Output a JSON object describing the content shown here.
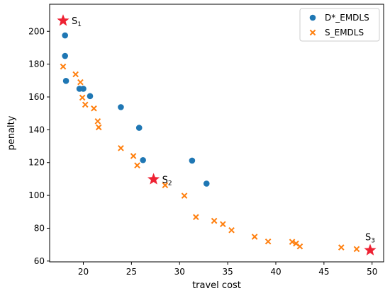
{
  "chart_data": {
    "type": "scatter",
    "xlabel": "travel cost",
    "ylabel": "penalty",
    "xlim": [
      16.5,
      51.2
    ],
    "ylim": [
      59.5,
      216.5
    ],
    "xticks": [
      20,
      25,
      30,
      35,
      40,
      45,
      50
    ],
    "yticks": [
      60,
      80,
      100,
      120,
      140,
      160,
      180,
      200
    ],
    "grid": false,
    "legend_position": "top-right",
    "colors": {
      "d_emdls": "#1f77b4",
      "s_emdls": "#ff7f0e",
      "star": "#ee2233"
    },
    "series": [
      {
        "name": "D*_EMDLS",
        "marker": "circle",
        "points": [
          [
            18.1,
            197.5
          ],
          [
            18.1,
            185.0
          ],
          [
            18.2,
            169.8
          ],
          [
            19.6,
            165.0
          ],
          [
            20.0,
            165.0
          ],
          [
            20.7,
            160.5
          ],
          [
            23.9,
            153.8
          ],
          [
            25.8,
            141.2
          ],
          [
            26.2,
            121.5
          ],
          [
            31.3,
            121.2
          ],
          [
            32.8,
            107.2
          ]
        ]
      },
      {
        "name": "S_EMDLS",
        "marker": "x",
        "points": [
          [
            17.9,
            178.5
          ],
          [
            19.2,
            173.8
          ],
          [
            19.7,
            169.0
          ],
          [
            19.9,
            159.6
          ],
          [
            20.2,
            155.3
          ],
          [
            21.1,
            153.0
          ],
          [
            21.5,
            145.2
          ],
          [
            21.6,
            141.5
          ],
          [
            23.9,
            128.8
          ],
          [
            25.2,
            124.0
          ],
          [
            25.6,
            118.3
          ],
          [
            28.5,
            106.2
          ],
          [
            30.5,
            99.8
          ],
          [
            31.7,
            86.8
          ],
          [
            33.6,
            84.5
          ],
          [
            34.5,
            82.5
          ],
          [
            35.4,
            78.8
          ],
          [
            37.8,
            74.8
          ],
          [
            39.2,
            71.9
          ],
          [
            41.7,
            71.7
          ],
          [
            42.1,
            70.7
          ],
          [
            42.5,
            68.9
          ],
          [
            46.8,
            68.3
          ],
          [
            48.4,
            67.3
          ]
        ]
      }
    ],
    "annotations": [
      {
        "label": "S",
        "sub": "1",
        "x": 17.9,
        "y": 206.5
      },
      {
        "label": "S",
        "sub": "2",
        "x": 27.3,
        "y": 109.8
      },
      {
        "label": "S",
        "sub": "3",
        "x": 49.8,
        "y": 66.6
      }
    ]
  }
}
